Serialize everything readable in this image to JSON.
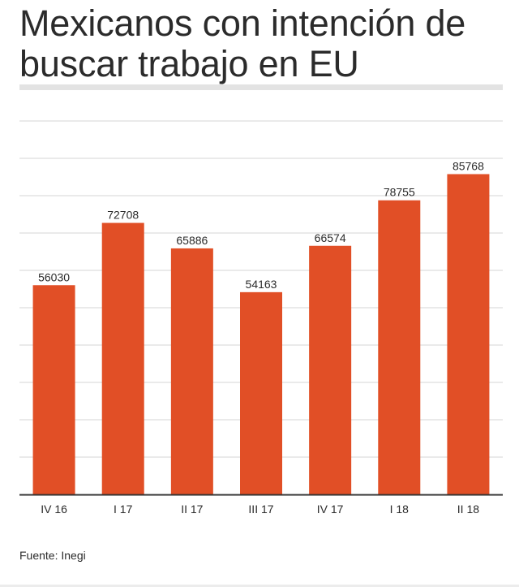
{
  "title": "Mexicanos con intención de buscar trabajo en EU",
  "source": "Fuente: Inegi",
  "colors": {
    "bar": "#e14f26",
    "grid": "#d4d4d4",
    "axis": "#333333",
    "text": "#2b2b2b"
  },
  "chart_data": {
    "type": "bar",
    "categories": [
      "IV 16",
      "I 17",
      "II 17",
      "III 17",
      "IV 17",
      "I 18",
      "II 18"
    ],
    "values": [
      56030,
      72708,
      65886,
      54163,
      66574,
      78755,
      85768
    ],
    "title": "Mexicanos con intención de buscar trabajo en EU",
    "xlabel": "",
    "ylabel": "",
    "ylim": [
      0,
      100000
    ],
    "grid": true,
    "data_labels": true,
    "legend": "none"
  }
}
